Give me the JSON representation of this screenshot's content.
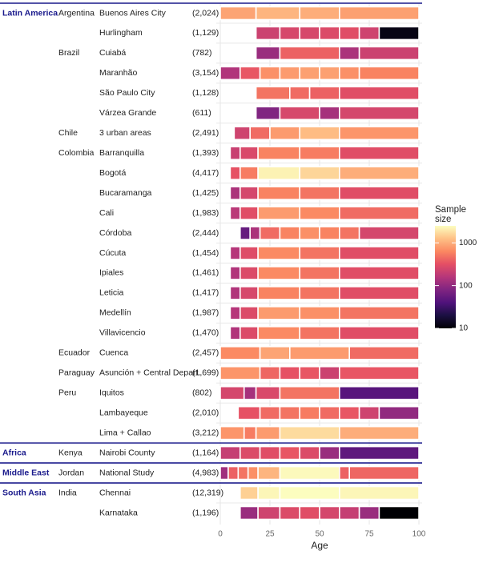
{
  "chart_data": {
    "type": "bar",
    "x_axis": {
      "label": "Age",
      "ticks": [
        0,
        25,
        50,
        75,
        100
      ],
      "range": [
        0,
        100
      ]
    },
    "legend": {
      "title_lines": [
        "Sample",
        "size"
      ],
      "ticks": [
        {
          "value": 1000,
          "label": "1000"
        },
        {
          "value": 100,
          "label": "100"
        },
        {
          "value": 10,
          "label": "10"
        }
      ],
      "scale": "log",
      "range": [
        10,
        2500
      ],
      "position": "right"
    },
    "colors": {
      "region_text": "#1a1a8c",
      "separator": "#1a1a8c"
    },
    "rows": [
      {
        "region": "Latin America",
        "country": "Argentina",
        "site": "Buenos Aires City",
        "n": "(2,024)",
        "bands": [
          [
            0,
            18,
            900
          ],
          [
            18,
            40,
            1100
          ],
          [
            40,
            60,
            1000
          ],
          [
            60,
            100,
            850
          ]
        ]
      },
      {
        "region": "",
        "country": "",
        "site": "Hurlingham",
        "n": "(1,129)",
        "bands": [
          [
            18,
            30,
            220
          ],
          [
            30,
            40,
            260
          ],
          [
            40,
            50,
            260
          ],
          [
            50,
            60,
            280
          ],
          [
            60,
            70,
            300
          ],
          [
            70,
            80,
            230
          ],
          [
            80,
            100,
            12
          ]
        ]
      },
      {
        "region": "",
        "country": "Brazil",
        "site": "Cuiabá",
        "n": "(782)",
        "bands": [
          [
            18,
            30,
            110
          ],
          [
            30,
            60,
            400
          ],
          [
            60,
            70,
            140
          ],
          [
            70,
            100,
            220
          ]
        ]
      },
      {
        "region": "",
        "country": "",
        "site": "Maranhão",
        "n": "(3,154)",
        "bands": [
          [
            0,
            10,
            150
          ],
          [
            10,
            20,
            350
          ],
          [
            20,
            30,
            700
          ],
          [
            30,
            40,
            800
          ],
          [
            40,
            50,
            850
          ],
          [
            50,
            60,
            850
          ],
          [
            60,
            70,
            700
          ],
          [
            70,
            100,
            600
          ]
        ]
      },
      {
        "region": "",
        "country": "",
        "site": "São Paulo City",
        "n": "(1,128)",
        "bands": [
          [
            18,
            35,
            500
          ],
          [
            35,
            45,
            450
          ],
          [
            45,
            60,
            400
          ],
          [
            60,
            100,
            300
          ]
        ]
      },
      {
        "region": "",
        "country": "",
        "site": "Várzea Grande",
        "n": "(611)",
        "bands": [
          [
            18,
            30,
            80
          ],
          [
            30,
            50,
            260
          ],
          [
            50,
            60,
            130
          ],
          [
            60,
            100,
            250
          ]
        ]
      },
      {
        "region": "",
        "country": "Chile",
        "site": "3 urban areas",
        "n": "(2,491)",
        "bands": [
          [
            7,
            15,
            230
          ],
          [
            15,
            25,
            450
          ],
          [
            25,
            40,
            800
          ],
          [
            40,
            60,
            1200
          ],
          [
            60,
            100,
            750
          ]
        ]
      },
      {
        "region": "",
        "country": "Colombia",
        "site": "Barranquilla",
        "n": "(1,393)",
        "bands": [
          [
            5,
            10,
            210
          ],
          [
            10,
            19,
            270
          ],
          [
            19,
            40,
            600
          ],
          [
            40,
            60,
            550
          ],
          [
            60,
            100,
            300
          ]
        ]
      },
      {
        "region": "",
        "country": "",
        "site": "Bogotá",
        "n": "(4,417)",
        "bands": [
          [
            5,
            10,
            330
          ],
          [
            10,
            19,
            550
          ],
          [
            19,
            40,
            2200
          ],
          [
            40,
            60,
            1600
          ],
          [
            60,
            100,
            1000
          ]
        ]
      },
      {
        "region": "",
        "country": "",
        "site": "Bucaramanga",
        "n": "(1,425)",
        "bands": [
          [
            5,
            10,
            140
          ],
          [
            10,
            19,
            250
          ],
          [
            19,
            40,
            600
          ],
          [
            40,
            60,
            500
          ],
          [
            60,
            100,
            300
          ]
        ]
      },
      {
        "region": "",
        "country": "",
        "site": "Cali",
        "n": "(1,983)",
        "bands": [
          [
            5,
            10,
            170
          ],
          [
            10,
            19,
            300
          ],
          [
            19,
            40,
            800
          ],
          [
            40,
            60,
            650
          ],
          [
            60,
            100,
            450
          ]
        ]
      },
      {
        "region": "",
        "country": "",
        "site": "Córdoba",
        "n": "(2,444)",
        "bands": [
          [
            10,
            15,
            55
          ],
          [
            15,
            20,
            140
          ],
          [
            20,
            30,
            450
          ],
          [
            30,
            40,
            600
          ],
          [
            40,
            50,
            700
          ],
          [
            50,
            60,
            600
          ],
          [
            60,
            70,
            500
          ],
          [
            70,
            100,
            250
          ]
        ]
      },
      {
        "region": "",
        "country": "",
        "site": "Cúcuta",
        "n": "(1,454)",
        "bands": [
          [
            5,
            10,
            160
          ],
          [
            10,
            19,
            290
          ],
          [
            19,
            40,
            650
          ],
          [
            40,
            60,
            500
          ],
          [
            60,
            100,
            300
          ]
        ]
      },
      {
        "region": "",
        "country": "",
        "site": "Ipiales",
        "n": "(1,461)",
        "bands": [
          [
            5,
            10,
            150
          ],
          [
            10,
            19,
            280
          ],
          [
            19,
            40,
            650
          ],
          [
            40,
            60,
            500
          ],
          [
            60,
            100,
            300
          ]
        ]
      },
      {
        "region": "",
        "country": "",
        "site": "Leticia",
        "n": "(1,417)",
        "bands": [
          [
            5,
            10,
            150
          ],
          [
            10,
            19,
            260
          ],
          [
            19,
            40,
            600
          ],
          [
            40,
            60,
            500
          ],
          [
            60,
            100,
            300
          ]
        ]
      },
      {
        "region": "",
        "country": "",
        "site": "Medellín",
        "n": "(1,987)",
        "bands": [
          [
            5,
            10,
            160
          ],
          [
            10,
            19,
            280
          ],
          [
            19,
            40,
            800
          ],
          [
            40,
            60,
            700
          ],
          [
            60,
            100,
            500
          ]
        ]
      },
      {
        "region": "",
        "country": "",
        "site": "Villavicencio",
        "n": "(1,470)",
        "bands": [
          [
            5,
            10,
            150
          ],
          [
            10,
            19,
            280
          ],
          [
            19,
            40,
            650
          ],
          [
            40,
            60,
            500
          ],
          [
            60,
            100,
            300
          ]
        ]
      },
      {
        "region": "",
        "country": "Ecuador",
        "site": "Cuenca",
        "n": "(2,457)",
        "bands": [
          [
            0,
            20,
            650
          ],
          [
            20,
            35,
            900
          ],
          [
            35,
            65,
            800
          ],
          [
            65,
            100,
            450
          ]
        ]
      },
      {
        "region": "",
        "country": "Paraguay",
        "site": "Asunción + Central Depart.",
        "n": "(1,699)",
        "bands": [
          [
            0,
            20,
            750
          ],
          [
            20,
            30,
            420
          ],
          [
            30,
            40,
            330
          ],
          [
            40,
            50,
            350
          ],
          [
            50,
            60,
            220
          ],
          [
            60,
            100,
            350
          ]
        ]
      },
      {
        "region": "",
        "country": "Peru",
        "site": "Iquitos",
        "n": "(802)",
        "bands": [
          [
            0,
            12,
            250
          ],
          [
            12,
            18,
            130
          ],
          [
            18,
            30,
            270
          ],
          [
            30,
            60,
            500
          ],
          [
            60,
            100,
            45
          ]
        ]
      },
      {
        "region": "",
        "country": "",
        "site": "Lambayeque",
        "n": "(2,010)",
        "bands": [
          [
            9,
            20,
            330
          ],
          [
            20,
            30,
            450
          ],
          [
            30,
            40,
            500
          ],
          [
            40,
            50,
            550
          ],
          [
            50,
            60,
            450
          ],
          [
            60,
            70,
            350
          ],
          [
            70,
            80,
            230
          ],
          [
            80,
            100,
            100
          ]
        ]
      },
      {
        "region": "",
        "country": "",
        "site": "Lima + Callao",
        "n": "(3,212)",
        "bands": [
          [
            0,
            12,
            750
          ],
          [
            12,
            18,
            550
          ],
          [
            18,
            30,
            800
          ],
          [
            30,
            60,
            1700
          ],
          [
            60,
            100,
            1000
          ]
        ]
      },
      {
        "region": "Africa",
        "country": "Kenya",
        "site": "Nairobi County",
        "n": "(1,164)",
        "bands": [
          [
            0,
            10,
            200
          ],
          [
            10,
            20,
            280
          ],
          [
            20,
            30,
            300
          ],
          [
            30,
            40,
            350
          ],
          [
            40,
            50,
            280
          ],
          [
            50,
            60,
            110
          ],
          [
            60,
            100,
            50
          ]
        ]
      },
      {
        "region": "Middle East",
        "country": "Jordan",
        "site": "National Study",
        "n": "(4,983)",
        "bands": [
          [
            0,
            4,
            120
          ],
          [
            4,
            9,
            400
          ],
          [
            9,
            14,
            500
          ],
          [
            14,
            19,
            700
          ],
          [
            19,
            30,
            1100
          ],
          [
            30,
            60,
            2400
          ],
          [
            60,
            65,
            400
          ],
          [
            65,
            100,
            420
          ]
        ]
      },
      {
        "region": "South Asia",
        "country": "India",
        "site": "Chennai",
        "n": "(12,319)",
        "bands": [
          [
            10,
            19,
            1500
          ],
          [
            19,
            30,
            2300
          ],
          [
            30,
            60,
            2500
          ],
          [
            60,
            100,
            2300
          ]
        ]
      },
      {
        "region": "",
        "country": "",
        "site": "Karnataka",
        "n": "(1,196)",
        "bands": [
          [
            10,
            19,
            110
          ],
          [
            19,
            30,
            230
          ],
          [
            30,
            40,
            280
          ],
          [
            40,
            50,
            300
          ],
          [
            50,
            60,
            250
          ],
          [
            60,
            70,
            200
          ],
          [
            70,
            80,
            110
          ],
          [
            80,
            100,
            10
          ]
        ]
      }
    ],
    "separators_before_rows": [
      0,
      22,
      23,
      24
    ]
  }
}
